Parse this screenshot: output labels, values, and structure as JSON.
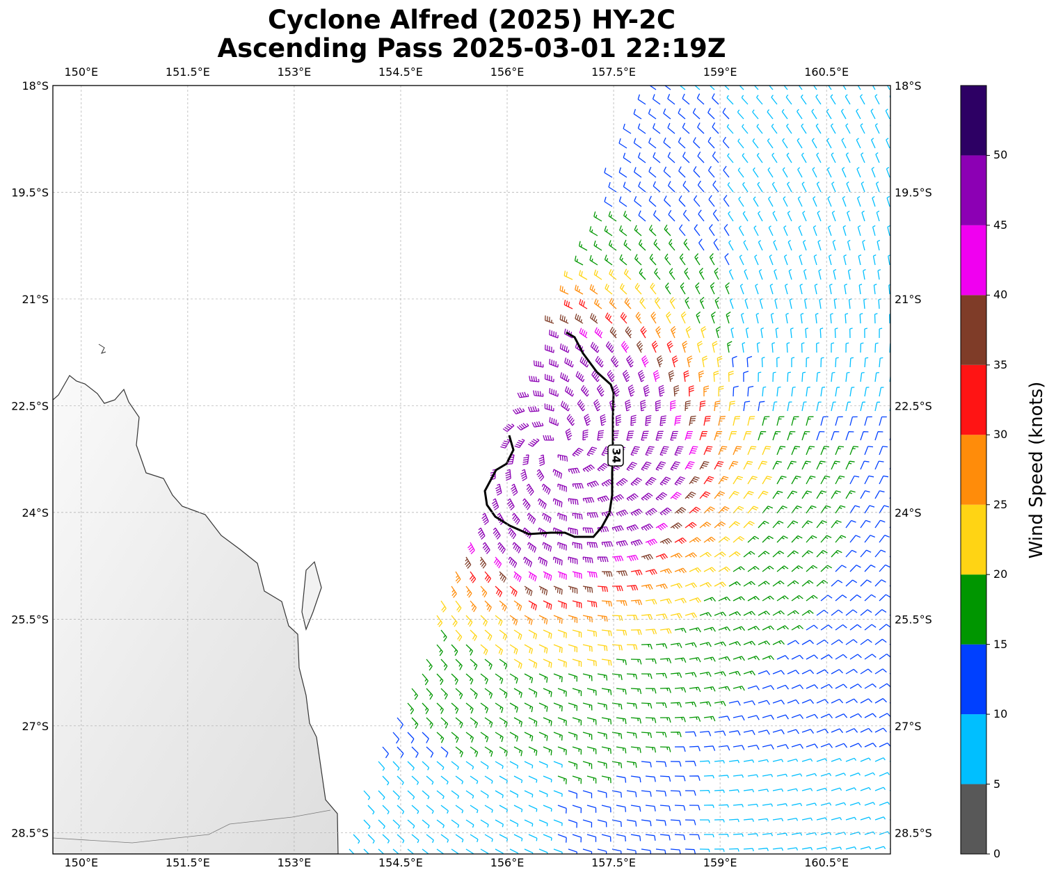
{
  "title_line1": "Cyclone Alfred (2025) HY-2C",
  "title_line2": "Ascending Pass 2025-03-01 22:19Z",
  "lon_labels": [
    "150°E",
    "151.5°E",
    "153°E",
    "154.5°E",
    "156°E",
    "157.5°E",
    "159°E",
    "160.5°E"
  ],
  "lat_labels": [
    "18°S",
    "19.5°S",
    "21°S",
    "22.5°S",
    "24°S",
    "25.5°S",
    "27°S",
    "28.5°S"
  ],
  "map_extent": {
    "lon_min": 149.6,
    "lon_max": 161.4,
    "lat_min": -28.8,
    "lat_max": -18.0
  },
  "contour_label": "34",
  "colorbar": {
    "title": "Wind Speed (knots)",
    "tick_labels": [
      "0",
      "5",
      "10",
      "15",
      "20",
      "25",
      "30",
      "35",
      "40",
      "45",
      "50"
    ],
    "bins": [
      {
        "from": 0,
        "to": 5,
        "color": "#585858"
      },
      {
        "from": 5,
        "to": 10,
        "color": "#00bfff"
      },
      {
        "from": 10,
        "to": 15,
        "color": "#0040ff"
      },
      {
        "from": 15,
        "to": 20,
        "color": "#009600"
      },
      {
        "from": 20,
        "to": 25,
        "color": "#ffd414"
      },
      {
        "from": 25,
        "to": 30,
        "color": "#ff8c0a"
      },
      {
        "from": 30,
        "to": 35,
        "color": "#ff1414"
      },
      {
        "from": 35,
        "to": 40,
        "color": "#7f3c28"
      },
      {
        "from": 40,
        "to": 45,
        "color": "#f000f0"
      },
      {
        "from": 45,
        "to": 50,
        "color": "#8c00b4"
      },
      {
        "from": 50,
        "to": 55,
        "color": "#2d0064"
      }
    ]
  },
  "cyclone_center": {
    "lon": 156.7,
    "lat": -23.1
  }
}
